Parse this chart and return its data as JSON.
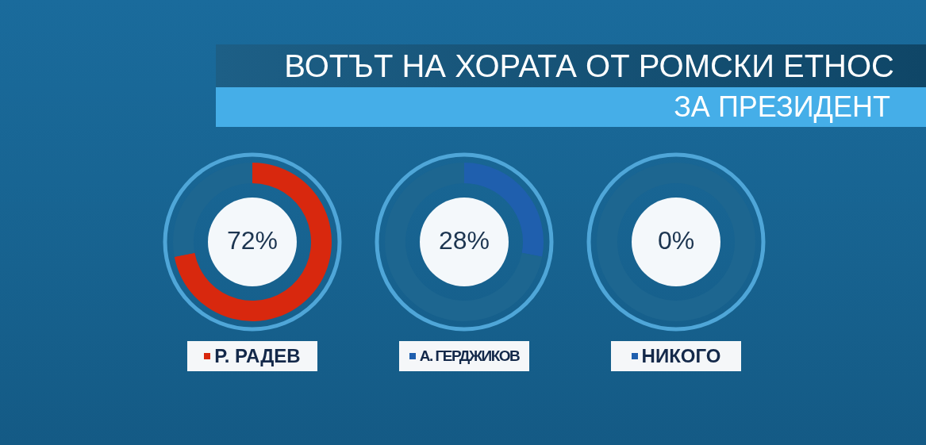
{
  "chart_data": [
    {
      "type": "donut",
      "title": "ВОТЪТ НА ХОРАТА ОТ РОМСКИ ЕТНОС",
      "subtitle": "ЗА ПРЕЗИДЕНТ",
      "categories": [
        "Р. РАДЕВ",
        null
      ],
      "values": [
        72,
        28
      ],
      "colors": [
        "#d8280e",
        "#1d6690"
      ],
      "value_labels": [
        "72%",
        null
      ]
    },
    {
      "type": "donut",
      "categories": [
        "А. ГЕРДЖИКОВ",
        null
      ],
      "values": [
        28,
        72
      ],
      "colors": [
        "#1f5fae",
        "#1d6690"
      ],
      "value_labels": [
        "28%",
        null
      ]
    },
    {
      "type": "donut",
      "categories": [
        "НИКОГО",
        null
      ],
      "values": [
        0,
        100
      ],
      "colors": [
        "#1f5fae",
        "#1d6690"
      ],
      "value_labels": [
        "0%",
        null
      ]
    }
  ]
}
